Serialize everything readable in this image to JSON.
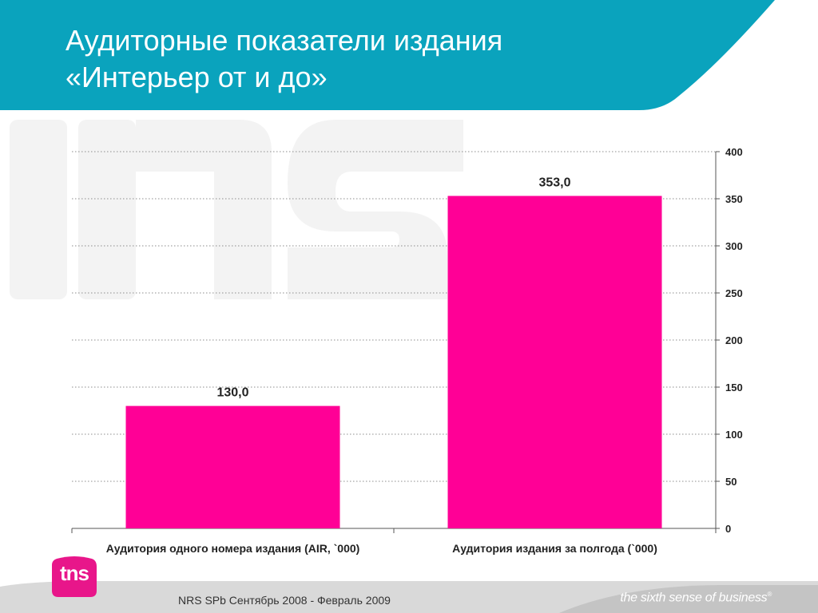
{
  "slide": {
    "title_line1": "Аудиторные показатели издания",
    "title_line2": "«Интерьер от и до»",
    "footer": "NRS SPb Сентябрь 2008 - Февраль 2009",
    "tagline": "the sixth sense of business",
    "tagline_mark": "®",
    "logo_text": "tns",
    "colors": {
      "header": "#0aa3bd",
      "bar": "#ff0096",
      "footer_band": "#d6d6d6"
    }
  },
  "chart_data": {
    "type": "bar",
    "categories": [
      "Аудитория одного номера издания (AIR, `000)",
      "Аудитория издания за полгода (`000)"
    ],
    "values": [
      130.0,
      353.0
    ],
    "value_labels": [
      "130,0",
      "353,0"
    ],
    "ylim": [
      0,
      400
    ],
    "yticks": [
      0,
      50,
      100,
      150,
      200,
      250,
      300,
      350,
      400
    ],
    "yaxis_position": "right",
    "grid": true,
    "color": "#ff0096"
  }
}
